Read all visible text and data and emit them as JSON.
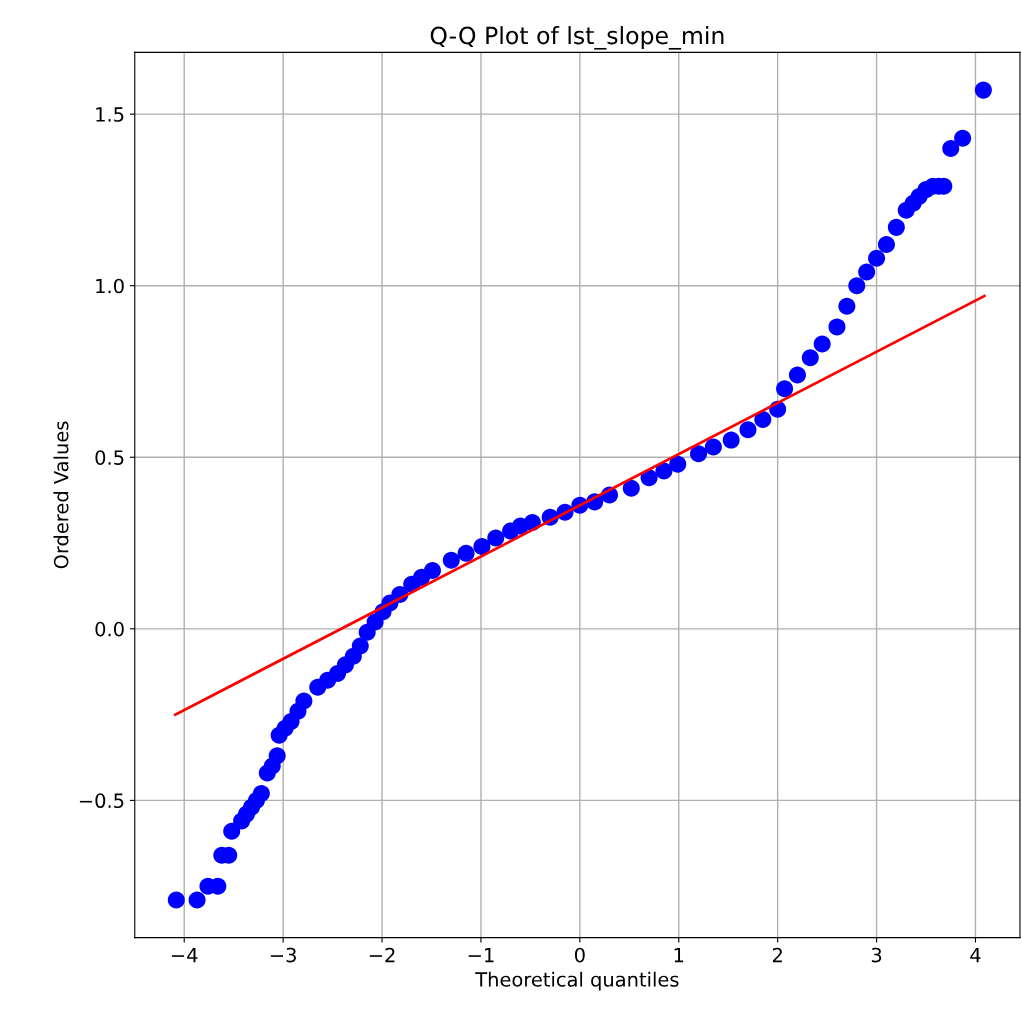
{
  "chart_data": {
    "type": "scatter",
    "title": "Q-Q Plot of lst_slope_min",
    "xlabel": "Theoretical quantiles",
    "ylabel": "Ordered Values",
    "series": [
      {
        "color": "#0000ff",
        "marker": "circle",
        "x": [
          -4.08,
          -3.87,
          -3.76,
          -3.66,
          -3.62,
          -3.55,
          -3.52,
          -3.42,
          -3.37,
          -3.32,
          -3.27,
          -3.22,
          -3.16,
          -3.11,
          -3.06,
          -3.04,
          -2.98,
          -2.92,
          -2.85,
          -2.79,
          -2.65,
          -2.55,
          -2.45,
          -2.37,
          -2.29,
          -2.22,
          -2.15,
          -2.07,
          -1.99,
          -1.92,
          -1.82,
          -1.7,
          -1.6,
          -1.49,
          -1.3,
          -1.15,
          -0.99,
          -0.85,
          -0.7,
          -0.6,
          -0.48,
          -0.3,
          -0.15,
          0,
          0.15,
          0.3,
          0.52,
          0.7,
          0.85,
          0.99,
          1.2,
          1.35,
          1.53,
          1.7,
          1.85,
          2.0,
          2.07,
          2.2,
          2.33,
          2.45,
          2.6,
          2.7,
          2.8,
          2.9,
          3.0,
          3.1,
          3.2,
          3.3,
          3.37,
          3.43,
          3.5,
          3.57,
          3.63,
          3.68,
          3.75,
          3.87,
          4.08
        ],
        "values": [
          -0.79,
          -0.79,
          -0.75,
          -0.75,
          -0.66,
          -0.66,
          -0.59,
          -0.56,
          -0.54,
          -0.52,
          -0.5,
          -0.48,
          -0.42,
          -0.4,
          -0.37,
          -0.31,
          -0.29,
          -0.27,
          -0.24,
          -0.21,
          -0.17,
          -0.15,
          -0.13,
          -0.105,
          -0.08,
          -0.05,
          -0.01,
          0.02,
          0.05,
          0.075,
          0.1,
          0.13,
          0.15,
          0.17,
          0.2,
          0.22,
          0.24,
          0.265,
          0.285,
          0.3,
          0.31,
          0.325,
          0.34,
          0.36,
          0.37,
          0.39,
          0.41,
          0.44,
          0.46,
          0.48,
          0.51,
          0.53,
          0.55,
          0.58,
          0.61,
          0.64,
          0.7,
          0.74,
          0.79,
          0.83,
          0.88,
          0.94,
          1.0,
          1.04,
          1.08,
          1.12,
          1.17,
          1.22,
          1.24,
          1.26,
          1.28,
          1.29,
          1.29,
          1.29,
          1.4,
          1.43,
          1.57
        ]
      },
      {
        "type": "line",
        "color": "#ff0000",
        "marker": "none",
        "x": [
          -4.09,
          4.09
        ],
        "values": [
          -0.25,
          0.97
        ]
      }
    ],
    "xlim": [
      -4.5,
      4.45
    ],
    "ylim": [
      -0.9,
      1.68
    ],
    "xticks": [
      {
        "value": -4,
        "label": "−4"
      },
      {
        "value": -3,
        "label": "−3"
      },
      {
        "value": -2,
        "label": "−2"
      },
      {
        "value": -1,
        "label": "−1"
      },
      0,
      1,
      2,
      3,
      4
    ],
    "yticks": [
      {
        "value": -0.5,
        "label": "−0.5"
      },
      {
        "value": 0,
        "label": "0.0"
      },
      0.5,
      {
        "value": 1,
        "label": "1.0"
      },
      1.5
    ],
    "grid": true
  }
}
